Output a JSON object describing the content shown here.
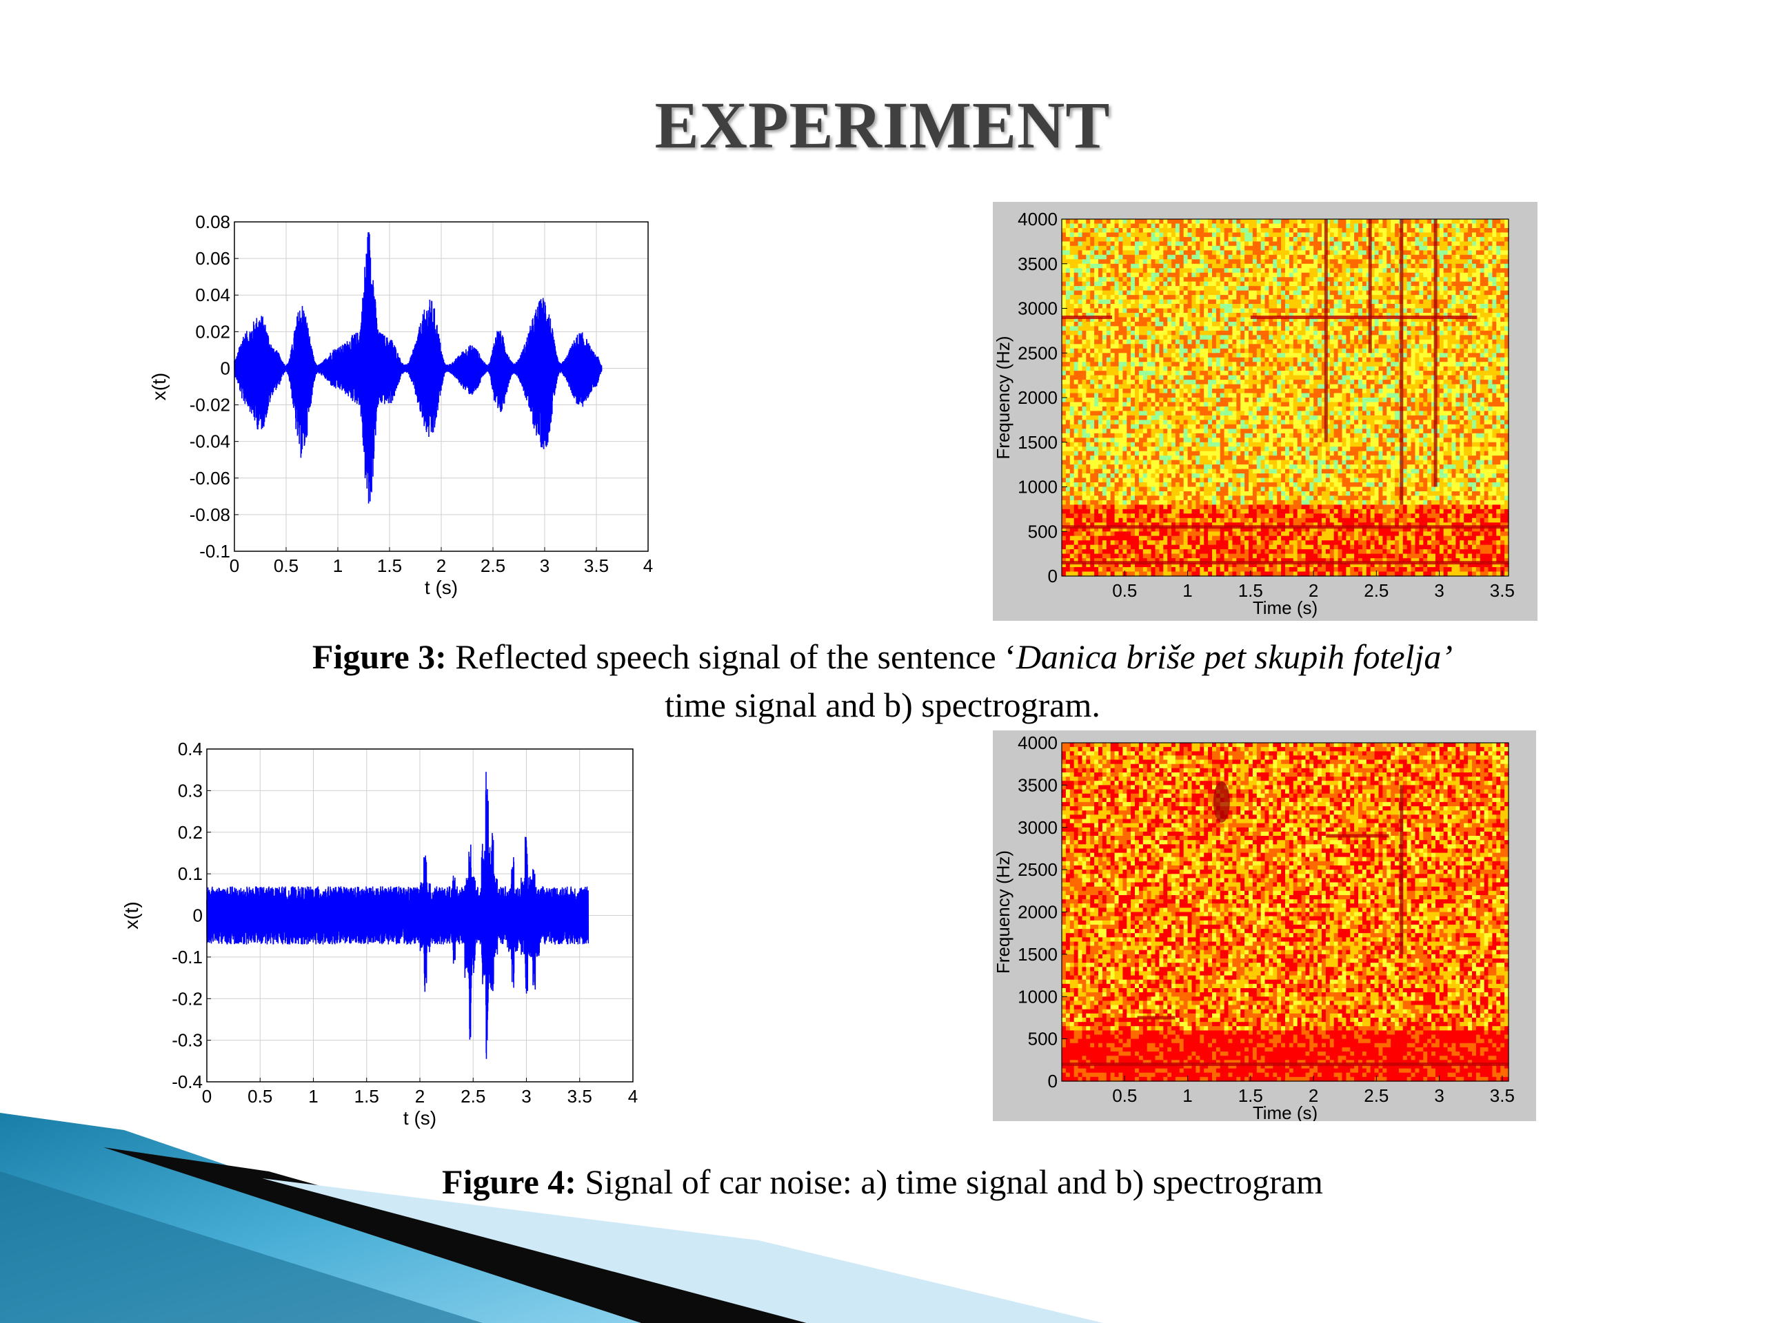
{
  "slide": {
    "title": "EXPERIMENT",
    "figure3_label": "Figure 3:",
    "figure3_text_pre": " Reflected speech signal of the sentence ‘",
    "figure3_text_italic": "Danica briše pet skupih fotelja’",
    "figure3_text_line2": "time signal and b) spectrogram.",
    "figure4_label": "Figure 4:",
    "figure4_text": " Signal of car noise: a) time signal and b) spectrogram"
  },
  "chart_data": [
    {
      "id": "fig3a",
      "type": "line",
      "xlabel": "t (s)",
      "ylabel": "x(t)",
      "xlim": [
        0,
        4
      ],
      "ylim": [
        -0.1,
        0.08
      ],
      "xticks": [
        0,
        0.5,
        1,
        1.5,
        2,
        2.5,
        3,
        3.5,
        4
      ],
      "xtick_labels": [
        "0",
        "0.5",
        "1",
        "1.5",
        "2",
        "2.5",
        "3",
        "3.5",
        "4"
      ],
      "yticks": [
        -0.1,
        -0.08,
        -0.06,
        -0.04,
        -0.02,
        0,
        0.02,
        0.04,
        0.06,
        0.08
      ],
      "ytick_labels": [
        "-0.1",
        "-0.08",
        "-0.06",
        "-0.04",
        "-0.02",
        "0",
        "0.02",
        "0.04",
        "0.06",
        "0.08"
      ],
      "grid": true,
      "color": "#0000ff",
      "signal_end": 3.55,
      "envelope": [
        {
          "t": 0.0,
          "hi": 0.005,
          "lo": -0.005
        },
        {
          "t": 0.1,
          "hi": 0.02,
          "lo": -0.02
        },
        {
          "t": 0.25,
          "hi": 0.03,
          "lo": -0.035
        },
        {
          "t": 0.4,
          "hi": 0.01,
          "lo": -0.012
        },
        {
          "t": 0.5,
          "hi": 0.002,
          "lo": -0.002
        },
        {
          "t": 0.65,
          "hi": 0.036,
          "lo": -0.05
        },
        {
          "t": 0.8,
          "hi": 0.002,
          "lo": -0.003
        },
        {
          "t": 1.0,
          "hi": 0.012,
          "lo": -0.012
        },
        {
          "t": 1.2,
          "hi": 0.02,
          "lo": -0.02
        },
        {
          "t": 1.3,
          "hi": 0.078,
          "lo": -0.081
        },
        {
          "t": 1.4,
          "hi": 0.02,
          "lo": -0.02
        },
        {
          "t": 1.5,
          "hi": 0.017,
          "lo": -0.02
        },
        {
          "t": 1.65,
          "hi": 0.002,
          "lo": -0.002
        },
        {
          "t": 1.9,
          "hi": 0.038,
          "lo": -0.04
        },
        {
          "t": 2.05,
          "hi": 0.002,
          "lo": -0.002
        },
        {
          "t": 2.3,
          "hi": 0.013,
          "lo": -0.015
        },
        {
          "t": 2.45,
          "hi": 0.002,
          "lo": -0.002
        },
        {
          "t": 2.55,
          "hi": 0.022,
          "lo": -0.028
        },
        {
          "t": 2.7,
          "hi": 0.003,
          "lo": -0.003
        },
        {
          "t": 3.0,
          "hi": 0.04,
          "lo": -0.045
        },
        {
          "t": 3.15,
          "hi": 0.003,
          "lo": -0.003
        },
        {
          "t": 3.35,
          "hi": 0.02,
          "lo": -0.022
        },
        {
          "t": 3.5,
          "hi": 0.008,
          "lo": -0.01
        },
        {
          "t": 3.55,
          "hi": 0.002,
          "lo": -0.002
        }
      ]
    },
    {
      "id": "fig3b",
      "type": "heatmap",
      "xlabel": "Time (s)",
      "ylabel": "Frequency (Hz)",
      "xlim": [
        0,
        3.55
      ],
      "ylim": [
        0,
        4000
      ],
      "xticks": [
        0.5,
        1,
        1.5,
        2,
        2.5,
        3,
        3.5
      ],
      "xtick_labels": [
        "0.5",
        "1",
        "1.5",
        "2",
        "2.5",
        "3",
        "3.5"
      ],
      "yticks": [
        0,
        500,
        1000,
        1500,
        2000,
        2500,
        3000,
        3500,
        4000
      ],
      "ytick_labels": [
        "0",
        "500",
        "1000",
        "1500",
        "2000",
        "2500",
        "3000",
        "3500",
        "4000"
      ],
      "colors": [
        "#ff0000",
        "#ff6a00",
        "#ffcc00",
        "#ffff33",
        "#99ff99"
      ],
      "base_level": 0.55,
      "low_freq_dark_below": 800,
      "horizontal_lines": [
        {
          "f": 2900,
          "t0": 0.0,
          "t1": 0.4
        },
        {
          "f": 2900,
          "t0": 1.5,
          "t1": 3.3
        },
        {
          "f": 150,
          "t0": 0,
          "t1": 3.55
        },
        {
          "f": 550,
          "t0": 0,
          "t1": 3.55
        }
      ],
      "vertical_lines": [
        {
          "t": 2.1,
          "f0": 1500,
          "f1": 4000
        },
        {
          "t": 2.45,
          "f0": 2500,
          "f1": 4000
        },
        {
          "t": 2.7,
          "f0": 800,
          "f1": 4000
        },
        {
          "t": 2.97,
          "f0": 1000,
          "f1": 4000
        }
      ]
    },
    {
      "id": "fig4a",
      "type": "line",
      "xlabel": "t (s)",
      "ylabel": "x(t)",
      "xlim": [
        0,
        4
      ],
      "ylim": [
        -0.4,
        0.4
      ],
      "xticks": [
        0,
        0.5,
        1,
        1.5,
        2,
        2.5,
        3,
        3.5,
        4
      ],
      "xtick_labels": [
        "0",
        "0.5",
        "1",
        "1.5",
        "2",
        "2.5",
        "3",
        "3.5",
        "4"
      ],
      "yticks": [
        -0.4,
        -0.3,
        -0.2,
        -0.1,
        0,
        0.1,
        0.2,
        0.3,
        0.4
      ],
      "ytick_labels": [
        "-0.4",
        "-0.3",
        "-0.2",
        "-0.1",
        "0",
        "0.1",
        "0.2",
        "0.3",
        "0.4"
      ],
      "grid": true,
      "color": "#0000ff",
      "signal_end": 3.58,
      "noise_amplitude": 0.07,
      "spikes": [
        {
          "t": 2.05,
          "hi": 0.16,
          "lo": -0.2
        },
        {
          "t": 2.32,
          "hi": 0.1,
          "lo": -0.12
        },
        {
          "t": 2.47,
          "hi": 0.19,
          "lo": -0.3
        },
        {
          "t": 2.63,
          "hi": 0.35,
          "lo": -0.35
        },
        {
          "t": 2.68,
          "hi": 0.2,
          "lo": -0.2
        },
        {
          "t": 2.87,
          "hi": 0.14,
          "lo": -0.18
        },
        {
          "t": 3.0,
          "hi": 0.19,
          "lo": -0.19
        },
        {
          "t": 3.07,
          "hi": 0.12,
          "lo": -0.2
        }
      ]
    },
    {
      "id": "fig4b",
      "type": "heatmap",
      "xlabel": "Time (s)",
      "ylabel": "Frequency (Hz)",
      "xlim": [
        0,
        3.55
      ],
      "ylim": [
        0,
        4000
      ],
      "xticks": [
        0.5,
        1,
        1.5,
        2,
        2.5,
        3,
        3.5
      ],
      "xtick_labels": [
        "0.5",
        "1",
        "1.5",
        "2",
        "2.5",
        "3",
        "3.5"
      ],
      "yticks": [
        0,
        500,
        1000,
        1500,
        2000,
        2500,
        3000,
        3500,
        4000
      ],
      "ytick_labels": [
        "0",
        "500",
        "1000",
        "1500",
        "2000",
        "2500",
        "3000",
        "3500",
        "4000"
      ],
      "colors": [
        "#ff0000",
        "#ff6a00",
        "#ffcc00",
        "#ffff33",
        "#99ff99"
      ],
      "base_level": 0.35,
      "low_freq_dark_below": 600,
      "horizontal_lines": [
        {
          "f": 200,
          "t0": 0,
          "t1": 3.55
        },
        {
          "f": 750,
          "t0": 0.6,
          "t1": 0.9
        },
        {
          "f": 2900,
          "t0": 2.1,
          "t1": 2.6
        }
      ],
      "vertical_lines": [
        {
          "t": 2.7,
          "f0": 1500,
          "f1": 3500
        }
      ],
      "blobs": [
        {
          "t": 1.27,
          "f": 3300
        }
      ]
    }
  ]
}
